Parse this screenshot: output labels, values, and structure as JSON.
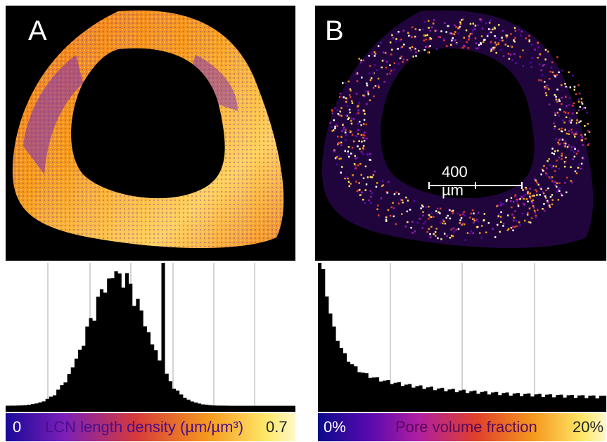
{
  "panel_a": {
    "letter": "A",
    "colorbar": {
      "min_label": "0",
      "title": "LCN length density (µm/µm³)",
      "max_label": "0.7"
    }
  },
  "panel_b": {
    "letter": "B",
    "scale_bar": "400 µm",
    "colorbar": {
      "min_label": "0%",
      "title": "Pore volume fraction",
      "max_label": "20%"
    }
  },
  "colors": {
    "low": "#2a0a8c",
    "mid_low": "#8a1fb0",
    "mid": "#e4492c",
    "mid_high": "#f59a1e",
    "high": "#fff5a0",
    "background": "#000000"
  }
}
